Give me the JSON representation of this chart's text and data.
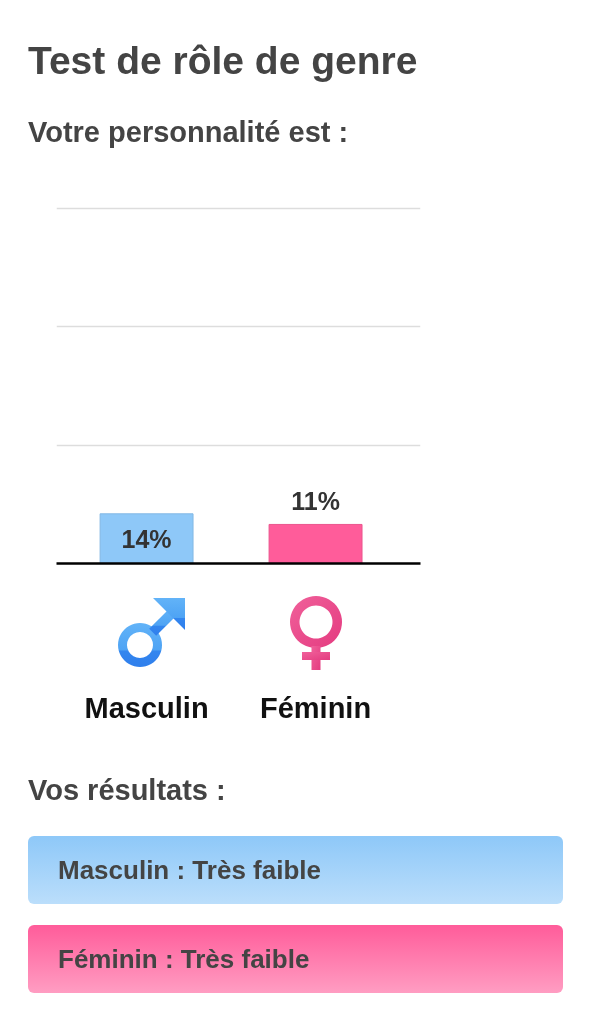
{
  "chart_data": {
    "type": "bar",
    "title": "Test de rôle de genre",
    "subtitle": "Votre personnalité est :",
    "categories": [
      "Masculin",
      "Féminin"
    ],
    "values": [
      14,
      11
    ],
    "value_labels": [
      "14%",
      "11%"
    ],
    "colors": [
      "#8ec8f8",
      "#ff5c9a"
    ],
    "ylim": [
      0,
      100
    ],
    "yticks": [
      {
        "value": 33.3,
        "label": null
      },
      {
        "value": 66.7,
        "label": null
      },
      {
        "value": 100,
        "label": null
      }
    ],
    "grid": "y",
    "tick_labels": "x",
    "annotations": [
      "Vos résultats :",
      "Masculin : Très faible",
      "Féminin : Très faible"
    ]
  }
}
